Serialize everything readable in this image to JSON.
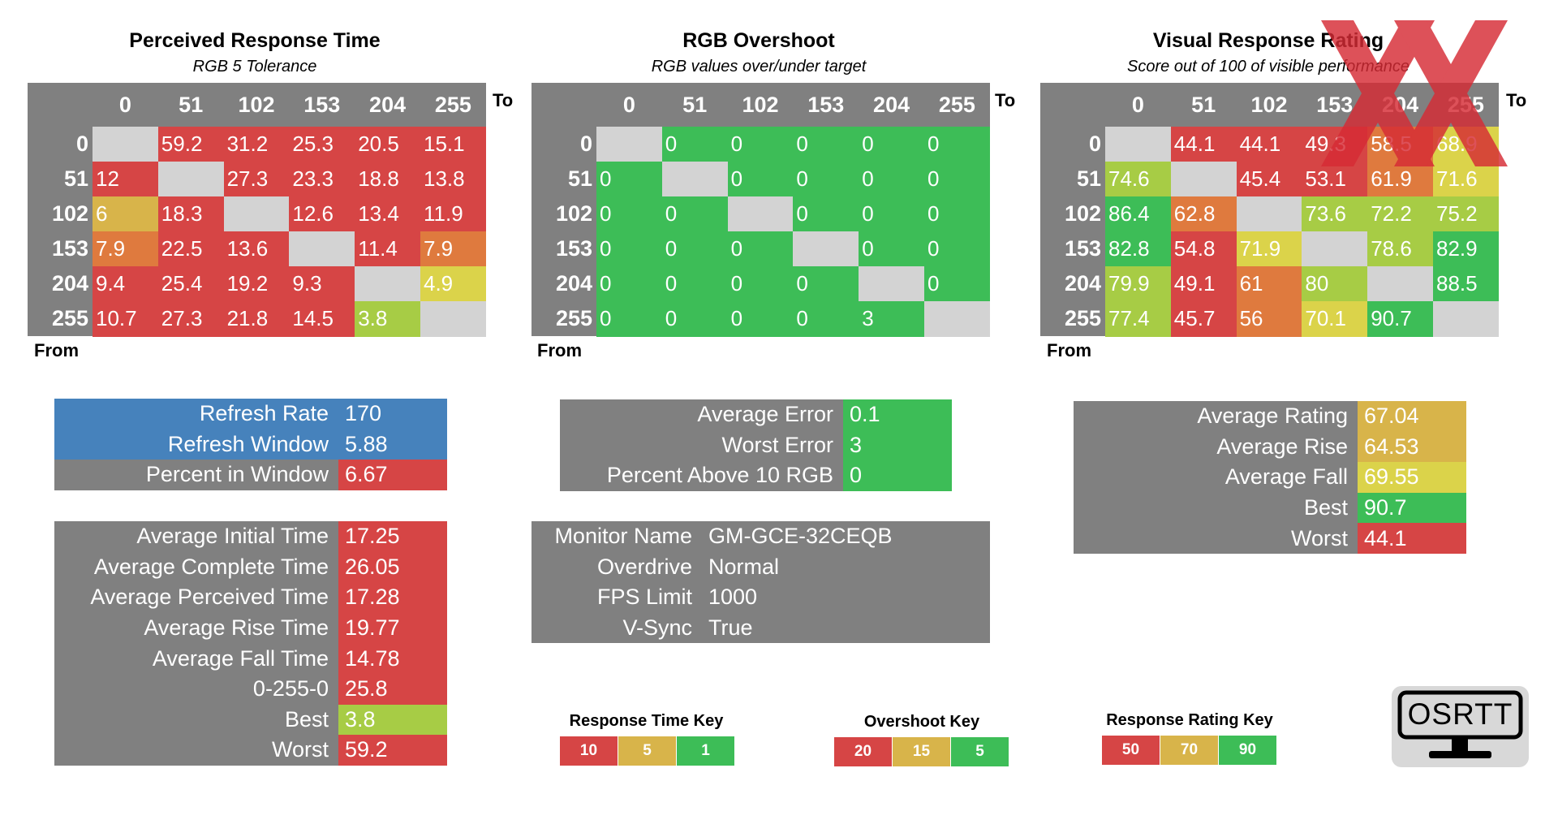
{
  "colors": {
    "red": "#d64545",
    "orange": "#df7a3e",
    "gold": "#d8b44a",
    "yellow": "#dbd34a",
    "lime": "#a7cc45",
    "green": "#3dbd57",
    "gray": "#808080",
    "empty": "#d3d3d3",
    "blue": "#4682bc"
  },
  "chart_data": [
    {
      "type": "heatmap",
      "title": "Perceived Response Time",
      "subtitle": "RGB 5 Tolerance",
      "xlabel": "To",
      "ylabel": "From",
      "columns": [
        "0",
        "51",
        "102",
        "153",
        "204",
        "255"
      ],
      "rows": [
        "0",
        "51",
        "102",
        "153",
        "204",
        "255"
      ],
      "values": [
        [
          null,
          "59.2",
          "31.2",
          "25.3",
          "20.5",
          "15.1"
        ],
        [
          "12",
          null,
          "27.3",
          "23.3",
          "18.8",
          "13.8"
        ],
        [
          "6",
          "18.3",
          null,
          "12.6",
          "13.4",
          "11.9"
        ],
        [
          "7.9",
          "22.5",
          "13.6",
          null,
          "11.4",
          "7.9"
        ],
        [
          "9.4",
          "25.4",
          "19.2",
          "9.3",
          null,
          "4.9"
        ],
        [
          "10.7",
          "27.3",
          "21.8",
          "14.5",
          "3.8",
          null
        ]
      ],
      "cell_colors": [
        [
          "empty",
          "red",
          "red",
          "red",
          "red",
          "red"
        ],
        [
          "red",
          "empty",
          "red",
          "red",
          "red",
          "red"
        ],
        [
          "gold",
          "red",
          "empty",
          "red",
          "red",
          "red"
        ],
        [
          "orange",
          "red",
          "red",
          "empty",
          "red",
          "orange"
        ],
        [
          "red",
          "red",
          "red",
          "red",
          "empty",
          "yellow"
        ],
        [
          "red",
          "red",
          "red",
          "red",
          "lime",
          "empty"
        ]
      ]
    },
    {
      "type": "heatmap",
      "title": "RGB Overshoot",
      "subtitle": "RGB values over/under target",
      "xlabel": "To",
      "ylabel": "From",
      "columns": [
        "0",
        "51",
        "102",
        "153",
        "204",
        "255"
      ],
      "rows": [
        "0",
        "51",
        "102",
        "153",
        "204",
        "255"
      ],
      "values": [
        [
          null,
          "0",
          "0",
          "0",
          "0",
          "0"
        ],
        [
          "0",
          null,
          "0",
          "0",
          "0",
          "0"
        ],
        [
          "0",
          "0",
          null,
          "0",
          "0",
          "0"
        ],
        [
          "0",
          "0",
          "0",
          null,
          "0",
          "0"
        ],
        [
          "0",
          "0",
          "0",
          "0",
          null,
          "0"
        ],
        [
          "0",
          "0",
          "0",
          "0",
          "3",
          null
        ]
      ],
      "cell_colors": [
        [
          "empty",
          "green",
          "green",
          "green",
          "green",
          "green"
        ],
        [
          "green",
          "empty",
          "green",
          "green",
          "green",
          "green"
        ],
        [
          "green",
          "green",
          "empty",
          "green",
          "green",
          "green"
        ],
        [
          "green",
          "green",
          "green",
          "empty",
          "green",
          "green"
        ],
        [
          "green",
          "green",
          "green",
          "green",
          "empty",
          "green"
        ],
        [
          "green",
          "green",
          "green",
          "green",
          "green",
          "empty"
        ]
      ]
    },
    {
      "type": "heatmap",
      "title": "Visual Response Rating",
      "subtitle": "Score out of 100 of visible performance",
      "xlabel": "To",
      "ylabel": "From",
      "columns": [
        "0",
        "51",
        "102",
        "153",
        "204",
        "255"
      ],
      "rows": [
        "0",
        "51",
        "102",
        "153",
        "204",
        "255"
      ],
      "values": [
        [
          null,
          "44.1",
          "44.1",
          "49.3",
          "58.5",
          "68.9"
        ],
        [
          "74.6",
          null,
          "45.4",
          "53.1",
          "61.9",
          "71.6"
        ],
        [
          "86.4",
          "62.8",
          null,
          "73.6",
          "72.2",
          "75.2"
        ],
        [
          "82.8",
          "54.8",
          "71.9",
          null,
          "78.6",
          "82.9"
        ],
        [
          "79.9",
          "49.1",
          "61",
          "80",
          null,
          "88.5"
        ],
        [
          "77.4",
          "45.7",
          "56",
          "70.1",
          "90.7",
          null
        ]
      ],
      "cell_colors": [
        [
          "empty",
          "red",
          "red",
          "red",
          "orange",
          "yellow"
        ],
        [
          "lime",
          "empty",
          "red",
          "red",
          "orange",
          "yellow"
        ],
        [
          "green",
          "orange",
          "empty",
          "lime",
          "lime",
          "lime"
        ],
        [
          "green",
          "red",
          "yellow",
          "empty",
          "lime",
          "green"
        ],
        [
          "lime",
          "red",
          "orange",
          "lime",
          "empty",
          "green"
        ],
        [
          "lime",
          "red",
          "orange",
          "yellow",
          "green",
          "empty"
        ]
      ]
    }
  ],
  "stats": {
    "refresh": [
      {
        "label": "Refresh Rate",
        "value": "170",
        "lab_color": "blue",
        "val_color": "blue"
      },
      {
        "label": "Refresh Window",
        "value": "5.88",
        "lab_color": "blue",
        "val_color": "blue"
      },
      {
        "label": "Percent in Window",
        "value": "6.67",
        "lab_color": "gray",
        "val_color": "red"
      }
    ],
    "times": [
      {
        "label": "Average Initial Time",
        "value": "17.25",
        "val_color": "red"
      },
      {
        "label": "Average Complete Time",
        "value": "26.05",
        "val_color": "red"
      },
      {
        "label": "Average Perceived Time",
        "value": "17.28",
        "val_color": "red"
      },
      {
        "label": "Average Rise Time",
        "value": "19.77",
        "val_color": "red"
      },
      {
        "label": "Average Fall Time",
        "value": "14.78",
        "val_color": "red"
      },
      {
        "label": "0-255-0",
        "value": "25.8",
        "val_color": "red"
      },
      {
        "label": "Best",
        "value": "3.8",
        "val_color": "lime"
      },
      {
        "label": "Worst",
        "value": "59.2",
        "val_color": "red"
      }
    ],
    "errors": [
      {
        "label": "Average Error",
        "value": "0.1",
        "val_color": "green"
      },
      {
        "label": "Worst Error",
        "value": "3",
        "val_color": "green"
      },
      {
        "label": "Percent Above 10 RGB",
        "value": "0",
        "val_color": "green"
      }
    ],
    "monitor": [
      {
        "label": "Monitor Name",
        "value": "GM-GCE-32CEQB"
      },
      {
        "label": "Overdrive",
        "value": "Normal"
      },
      {
        "label": "FPS Limit",
        "value": "1000"
      },
      {
        "label": "V-Sync",
        "value": "True"
      }
    ],
    "ratings": [
      {
        "label": "Average Rating",
        "value": "67.04",
        "val_color": "gold"
      },
      {
        "label": "Average Rise",
        "value": "64.53",
        "val_color": "gold"
      },
      {
        "label": "Average Fall",
        "value": "69.55",
        "val_color": "yellow"
      },
      {
        "label": "Best",
        "value": "90.7",
        "val_color": "green"
      },
      {
        "label": "Worst",
        "value": "44.1",
        "val_color": "red"
      }
    ]
  },
  "keys": [
    {
      "title": "Response Time Key",
      "values": [
        "10",
        "5",
        "1"
      ],
      "colors": [
        "red",
        "gold",
        "green"
      ]
    },
    {
      "title": "Overshoot Key",
      "values": [
        "20",
        "15",
        "5"
      ],
      "colors": [
        "red",
        "gold",
        "green"
      ]
    },
    {
      "title": "Response Rating Key",
      "values": [
        "50",
        "70",
        "90"
      ],
      "colors": [
        "red",
        "gold",
        "green"
      ]
    }
  ],
  "logo": {
    "text": "OSRTT"
  }
}
